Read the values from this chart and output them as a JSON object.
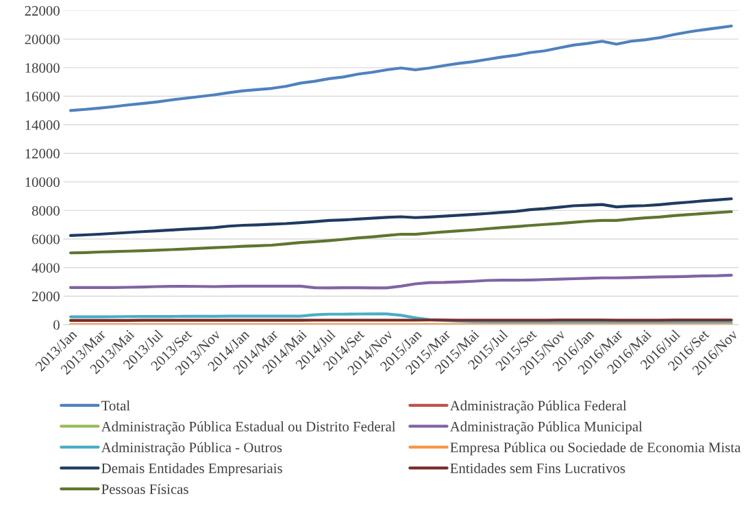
{
  "chart_data": {
    "type": "line",
    "categories": [
      "2013/Jan",
      null,
      "2013/Mar",
      null,
      "2013/Mai",
      null,
      "2013/Jul",
      null,
      "2013/Set",
      null,
      "2013/Nov",
      null,
      "2014/Jan",
      null,
      "2014/Mar",
      null,
      "2014/Mai",
      null,
      "2014/Jul",
      null,
      "2014/Set",
      null,
      "2014/Nov",
      null,
      "2015/Jan",
      null,
      "2015/Mar",
      null,
      "2015/Mai",
      null,
      "2015/Jul",
      null,
      "2015/Set",
      null,
      "2015/Nov",
      null,
      "2016/Jan",
      null,
      "2016/Mar",
      null,
      "2016/Mai",
      null,
      "2016/Jul",
      null,
      "2016/Set",
      null,
      "2016/Nov"
    ],
    "ylim": [
      0,
      22000
    ],
    "yticks": [
      0,
      2000,
      4000,
      6000,
      8000,
      10000,
      12000,
      14000,
      16000,
      18000,
      20000,
      22000
    ],
    "grid": "y",
    "legend": "bottom",
    "marker": "none",
    "line_style": "solid",
    "series": [
      {
        "name": "Total",
        "color": "#4f81bd",
        "values": [
          15000,
          15080,
          15170,
          15270,
          15390,
          15490,
          15600,
          15740,
          15860,
          15980,
          16100,
          16250,
          16380,
          16460,
          16550,
          16700,
          16920,
          17050,
          17230,
          17350,
          17550,
          17680,
          17850,
          17980,
          17850,
          17980,
          18150,
          18300,
          18420,
          18580,
          18740,
          18870,
          19060,
          19180,
          19380,
          19580,
          19700,
          19850,
          19650,
          19850,
          19950,
          20100,
          20320,
          20500,
          20650,
          20780,
          20920
        ]
      },
      {
        "name": "Administração Pública Federal",
        "color": "#c0504d",
        "values": [
          null,
          null,
          null,
          null,
          null,
          null,
          null,
          null,
          null,
          null,
          null,
          null,
          null,
          null,
          null,
          null,
          null,
          null,
          null,
          null,
          null,
          null,
          null,
          null,
          null,
          null,
          null,
          null,
          null,
          null,
          null,
          null,
          null,
          null,
          null,
          null,
          null,
          null,
          null,
          null,
          null,
          null,
          null,
          null,
          null,
          null,
          null
        ]
      },
      {
        "name": "Administração Pública Estadual ou Distrito Federal",
        "color": "#9bbb59",
        "values": [
          null,
          null,
          null,
          null,
          null,
          null,
          null,
          null,
          null,
          null,
          null,
          null,
          null,
          null,
          null,
          null,
          null,
          null,
          null,
          null,
          null,
          null,
          null,
          null,
          null,
          null,
          null,
          null,
          null,
          null,
          null,
          null,
          null,
          null,
          null,
          null,
          null,
          null,
          null,
          null,
          null,
          null,
          null,
          null,
          null,
          null,
          null
        ]
      },
      {
        "name": "Administração Pública Municipal",
        "color": "#8064a2",
        "values": [
          2600,
          2600,
          2600,
          2600,
          2620,
          2640,
          2670,
          2690,
          2690,
          2680,
          2670,
          2690,
          2700,
          2700,
          2700,
          2700,
          2700,
          2590,
          2580,
          2590,
          2590,
          2580,
          2580,
          2700,
          2860,
          2950,
          2960,
          3000,
          3040,
          3100,
          3120,
          3120,
          3130,
          3160,
          3190,
          3220,
          3250,
          3280,
          3280,
          3300,
          3320,
          3350,
          3360,
          3380,
          3420,
          3430,
          3470
        ]
      },
      {
        "name": "Administração Pública - Outros",
        "color": "#4bacc6",
        "values": [
          550,
          550,
          550,
          560,
          570,
          580,
          580,
          580,
          590,
          590,
          590,
          600,
          600,
          600,
          600,
          600,
          600,
          700,
          740,
          740,
          750,
          760,
          760,
          660,
          480,
          350,
          300,
          250,
          220,
          200,
          200,
          190,
          190,
          180,
          180,
          170,
          170,
          170,
          160,
          160,
          160,
          160,
          150,
          150,
          150,
          150,
          150
        ]
      },
      {
        "name": "Empresa Pública ou Sociedade de Economia Mista",
        "color": "#f79646",
        "values": [
          20,
          20,
          20,
          20,
          20,
          20,
          20,
          20,
          20,
          20,
          20,
          20,
          20,
          20,
          20,
          20,
          20,
          20,
          20,
          20,
          20,
          20,
          20,
          20,
          20,
          20,
          20,
          20,
          20,
          20,
          20,
          20,
          20,
          20,
          20,
          20,
          20,
          20,
          20,
          20,
          20,
          20,
          20,
          20,
          20,
          20,
          20
        ]
      },
      {
        "name": "Demais Entidades Empresariais",
        "color": "#1f3b60",
        "values": [
          6250,
          6290,
          6340,
          6400,
          6460,
          6520,
          6570,
          6630,
          6690,
          6740,
          6800,
          6900,
          6960,
          6990,
          7040,
          7080,
          7150,
          7220,
          7300,
          7340,
          7400,
          7460,
          7520,
          7560,
          7500,
          7540,
          7600,
          7660,
          7720,
          7790,
          7870,
          7940,
          8060,
          8130,
          8230,
          8330,
          8370,
          8420,
          8250,
          8310,
          8340,
          8410,
          8500,
          8580,
          8670,
          8740,
          8820
        ]
      },
      {
        "name": "Entidades sem Fins Lucrativos",
        "color": "#772c2a",
        "values": [
          300,
          300,
          300,
          300,
          300,
          310,
          310,
          310,
          310,
          310,
          310,
          310,
          310,
          310,
          310,
          310,
          310,
          320,
          320,
          320,
          320,
          320,
          320,
          320,
          320,
          330,
          330,
          320,
          320,
          320,
          320,
          320,
          320,
          320,
          330,
          330,
          330,
          330,
          320,
          320,
          320,
          320,
          330,
          330,
          330,
          330,
          330
        ]
      },
      {
        "name": "Pessoas Físicas",
        "color": "#5f7530",
        "values": [
          5030,
          5050,
          5090,
          5120,
          5150,
          5180,
          5220,
          5260,
          5300,
          5350,
          5400,
          5440,
          5490,
          5530,
          5570,
          5660,
          5760,
          5820,
          5890,
          5980,
          6080,
          6150,
          6250,
          6340,
          6330,
          6420,
          6500,
          6570,
          6640,
          6720,
          6800,
          6870,
          6950,
          7020,
          7090,
          7170,
          7250,
          7300,
          7300,
          7400,
          7480,
          7540,
          7640,
          7710,
          7780,
          7850,
          7920
        ]
      }
    ]
  }
}
